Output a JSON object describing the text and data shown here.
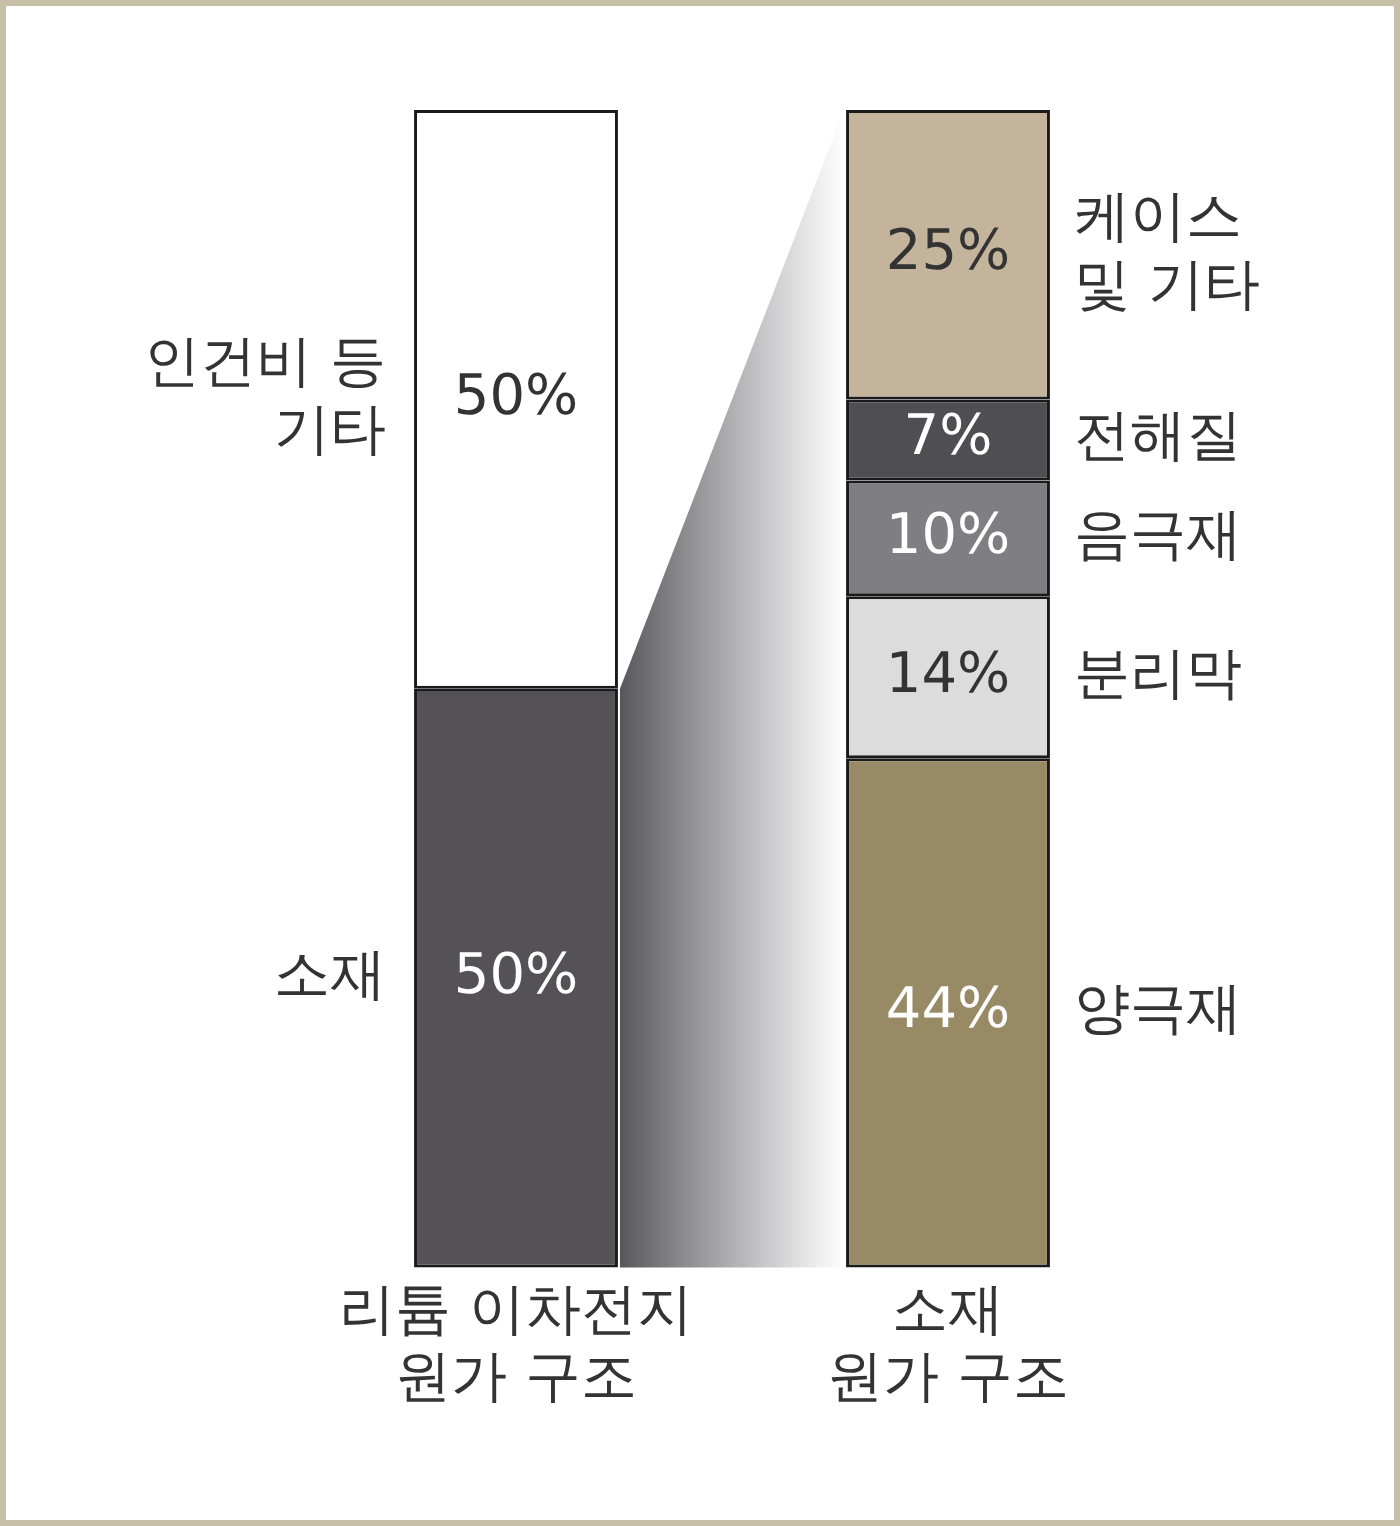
{
  "chart_data": {
    "type": "bar",
    "stacked": true,
    "categories": [
      "리튬 이차전지\n원가 구조",
      "소재\n원가 구조"
    ],
    "series": [
      {
        "name": "소재",
        "color": "#545257",
        "values": [
          50,
          null
        ],
        "value_labels": [
          "50%",
          null
        ]
      },
      {
        "name": "인건비 등\n기타",
        "color": "#ffffff",
        "values": [
          50,
          null
        ],
        "value_labels": [
          "50%",
          null
        ]
      },
      {
        "name": "양극재",
        "color": "#978a64",
        "values": [
          null,
          44
        ],
        "value_labels": [
          null,
          "44%"
        ]
      },
      {
        "name": "분리막",
        "color": "#dcdcdc",
        "values": [
          null,
          14
        ],
        "value_labels": [
          null,
          "14%"
        ]
      },
      {
        "name": "음극재",
        "color": "#7f7f83",
        "values": [
          null,
          10
        ],
        "value_labels": [
          null,
          "10%"
        ]
      },
      {
        "name": "전해질",
        "color": "#4f4e53",
        "values": [
          null,
          7
        ],
        "value_labels": [
          null,
          "7%"
        ]
      },
      {
        "name": "케이스\n및 기타",
        "color": "#c3b49b",
        "values": [
          null,
          25
        ],
        "value_labels": [
          null,
          "25%"
        ]
      }
    ],
    "ylim": [
      0,
      100
    ],
    "tick_labels": "x",
    "grid": false,
    "legend": false
  }
}
